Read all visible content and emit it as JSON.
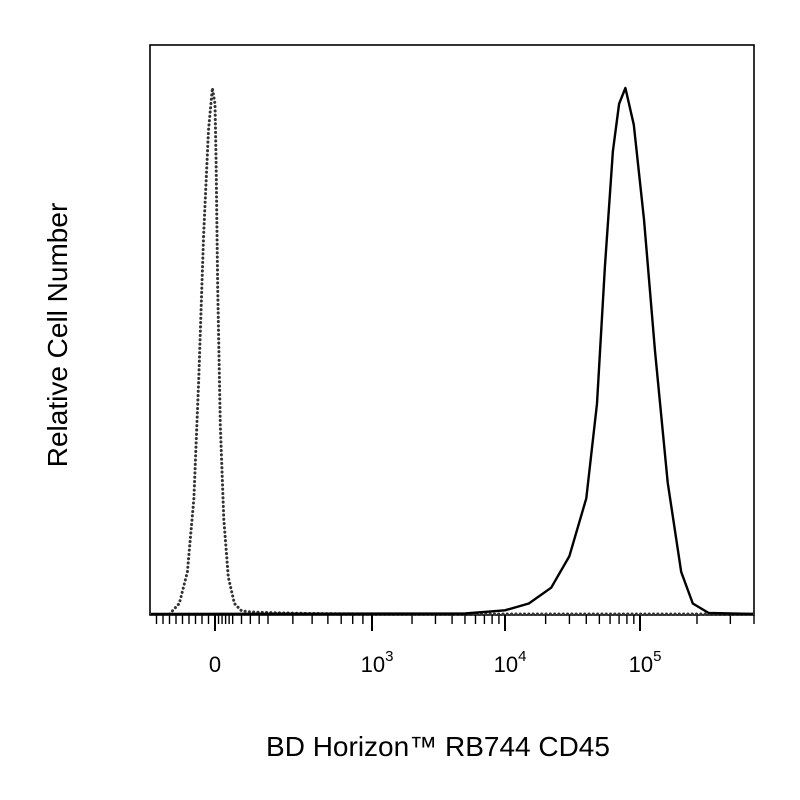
{
  "chart_data": {
    "type": "line",
    "title": "",
    "xlabel": "BD Horizon™ RB744 CD45",
    "ylabel": "Relative Cell Number",
    "x_scale": "biexponential",
    "xlim": [
      -200,
      400000
    ],
    "ylim": [
      0,
      1.05
    ],
    "grid": false,
    "x_ticks": [
      {
        "value": 0,
        "base": "0",
        "exp": ""
      },
      {
        "value": 1000,
        "base": "10",
        "exp": "3"
      },
      {
        "value": 10000,
        "base": "10",
        "exp": "4"
      },
      {
        "value": 100000,
        "base": "10",
        "exp": "5"
      }
    ],
    "series": [
      {
        "style": "dotted",
        "color": "#333333",
        "x": [
          -140,
          -110,
          -85,
          -65,
          -50,
          -35,
          -20,
          -8,
          0,
          6,
          15,
          30,
          50,
          75,
          110,
          150,
          200,
          260,
          350,
          500,
          1000,
          10000,
          400000
        ],
        "y": [
          0,
          0.02,
          0.08,
          0.22,
          0.45,
          0.72,
          0.92,
          1.0,
          0.97,
          0.86,
          0.62,
          0.36,
          0.18,
          0.07,
          0.02,
          0.006,
          0.004,
          0.003,
          0.002,
          0.001,
          0,
          0,
          0
        ]
      },
      {
        "style": "solid",
        "color": "#000000",
        "x": [
          -200,
          5000,
          10000,
          15000,
          22000,
          30000,
          40000,
          48000,
          55000,
          63000,
          70000,
          78000,
          90000,
          105000,
          120000,
          140000,
          165000,
          190000,
          230000,
          400000
        ],
        "y": [
          0,
          0.001,
          0.007,
          0.02,
          0.05,
          0.11,
          0.22,
          0.4,
          0.66,
          0.88,
          0.97,
          1.0,
          0.93,
          0.75,
          0.5,
          0.25,
          0.08,
          0.02,
          0.002,
          0
        ]
      }
    ]
  }
}
